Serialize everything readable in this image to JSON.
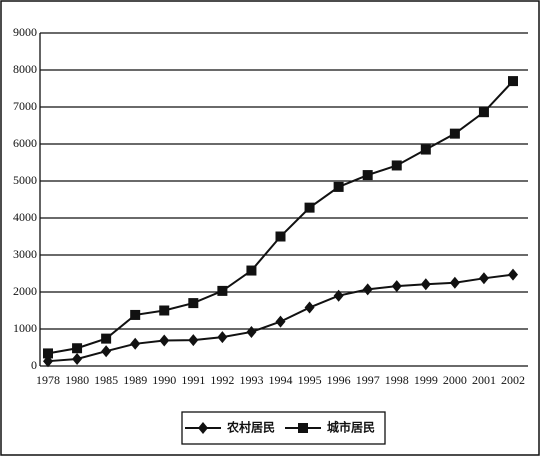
{
  "chart_data": {
    "type": "line",
    "categories": [
      "1978",
      "1980",
      "1985",
      "1989",
      "1990",
      "1991",
      "1992",
      "1993",
      "1994",
      "1995",
      "1996",
      "1997",
      "1998",
      "1999",
      "2000",
      "2001",
      "2002"
    ],
    "series": [
      {
        "name": "农村居民",
        "color": "#111111",
        "marker": "diamond",
        "values": [
          130,
          190,
          400,
          600,
          690,
          700,
          780,
          920,
          1200,
          1580,
          1900,
          2070,
          2160,
          2210,
          2250,
          2370,
          2470
        ]
      },
      {
        "name": "城市居民",
        "color": "#111111",
        "marker": "square",
        "values": [
          340,
          480,
          740,
          1380,
          1500,
          1700,
          2030,
          2580,
          3500,
          4280,
          4840,
          5160,
          5420,
          5850,
          6280,
          6860,
          7700
        ]
      }
    ],
    "ylim": [
      0,
      9000
    ],
    "yticks": [
      0,
      1000,
      2000,
      3000,
      4000,
      5000,
      6000,
      7000,
      8000,
      9000
    ],
    "grid": true,
    "legend": "bottom"
  }
}
